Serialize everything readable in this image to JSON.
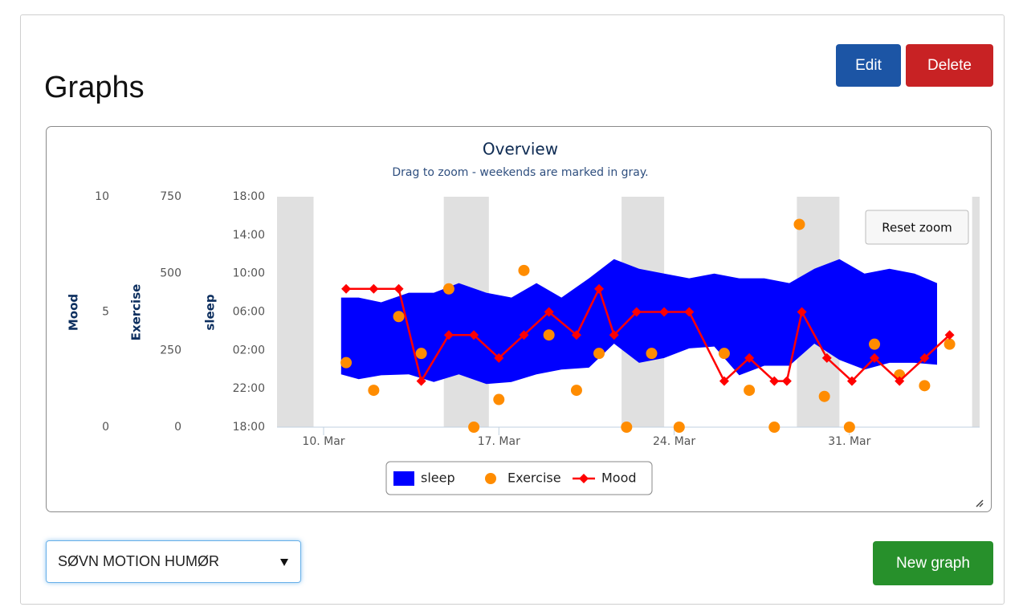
{
  "header": {
    "title": "Graphs"
  },
  "buttons": {
    "edit": "Edit",
    "delete": "Delete",
    "new_graph": "New graph",
    "reset_zoom": "Reset zoom"
  },
  "select": {
    "value": "SØVN MOTION HUMØR"
  },
  "chart_data": {
    "type": "combo",
    "title": "Overview",
    "subtitle": "Drag to zoom - weekends are marked in gray.",
    "xlim": [
      8.14,
      36.2
    ],
    "xticks": [
      {
        "value": 10,
        "label": "10. Mar"
      },
      {
        "value": 17,
        "label": "17. Mar"
      },
      {
        "value": 24,
        "label": "24. Mar"
      },
      {
        "value": 31,
        "label": "31. Mar"
      }
    ],
    "weekend_bands": [
      [
        8.14,
        9.6
      ],
      [
        14.8,
        16.6
      ],
      [
        21.9,
        23.6
      ],
      [
        28.9,
        30.6
      ],
      [
        35.9,
        36.2
      ]
    ],
    "weekend_color": "#e0e0e0",
    "grid": false,
    "ylabel": "sleep",
    "ylim": [
      0,
      24
    ],
    "yticks": [
      {
        "value": 0,
        "label": "18:00"
      },
      {
        "value": 4,
        "label": "22:00"
      },
      {
        "value": 8,
        "label": "02:00"
      },
      {
        "value": 12,
        "label": "06:00"
      },
      {
        "value": 16,
        "label": "10:00"
      },
      {
        "value": 20,
        "label": "14:00"
      },
      {
        "value": 24,
        "label": "18:00"
      }
    ],
    "y2label": "Exercise",
    "y2lim": [
      0,
      750
    ],
    "y2ticks": [
      0,
      250,
      500,
      750
    ],
    "y3label": "Mood",
    "y3lim": [
      0,
      10
    ],
    "y3ticks": [
      0,
      5,
      10
    ],
    "series": [
      {
        "name": "sleep",
        "type": "arearange",
        "color": "#0000ff",
        "x": [
          10.7,
          11.4,
          12.3,
          13.4,
          14.4,
          15.4,
          16.5,
          17.5,
          18.5,
          19.5,
          20.6,
          21.6,
          22.6,
          23.6,
          24.6,
          25.6,
          26.6,
          27.6,
          28.6,
          29.6,
          30.6,
          31.6,
          32.6,
          33.6,
          34.5
        ],
        "low": [
          5.5,
          5.0,
          5.4,
          5.5,
          4.7,
          5.5,
          4.5,
          4.7,
          5.5,
          6.0,
          6.2,
          8.7,
          6.7,
          7.2,
          8.2,
          8.4,
          5.4,
          6.4,
          6.4,
          8.7,
          7.0,
          6.0,
          6.7,
          6.7,
          6.5
        ],
        "high": [
          13.5,
          13.5,
          13.0,
          14.0,
          14.0,
          15.0,
          14.0,
          13.5,
          15.0,
          13.5,
          15.5,
          17.5,
          16.5,
          16.0,
          15.5,
          16.0,
          15.5,
          15.5,
          15.0,
          16.5,
          17.5,
          16.0,
          16.5,
          16.0,
          15.0
        ]
      },
      {
        "name": "Exercise",
        "type": "scatter",
        "axis": "y2",
        "color": "#ff8c00",
        "x": [
          10.9,
          12.0,
          13.0,
          13.9,
          15.0,
          16.0,
          17.0,
          18.0,
          19.0,
          20.1,
          21.0,
          22.1,
          23.1,
          24.2,
          26.0,
          27.0,
          28.0,
          29.0,
          30.0,
          31.0,
          32.0,
          33.0,
          34.0,
          35.0
        ],
        "values": [
          210,
          120,
          360,
          240,
          450,
          0,
          90,
          510,
          300,
          120,
          240,
          0,
          240,
          0,
          240,
          120,
          0,
          660,
          100,
          0,
          270,
          170,
          135,
          270
        ]
      },
      {
        "name": "Mood",
        "type": "line",
        "axis": "y3",
        "color": "#ff0000",
        "x": [
          10.9,
          12.0,
          13.0,
          13.9,
          15.0,
          16.0,
          17.0,
          18.0,
          19.0,
          20.1,
          21.0,
          21.6,
          22.5,
          23.6,
          24.6,
          26.0,
          27.0,
          28.0,
          28.5,
          29.1,
          30.1,
          31.1,
          32.0,
          33.0,
          34.0,
          35.0
        ],
        "values": [
          6,
          6,
          6,
          2,
          4,
          4,
          3,
          4,
          5,
          4,
          6,
          4,
          5,
          5,
          5,
          2,
          3,
          2,
          2,
          5,
          3,
          2,
          3,
          2,
          3,
          4
        ]
      }
    ]
  }
}
